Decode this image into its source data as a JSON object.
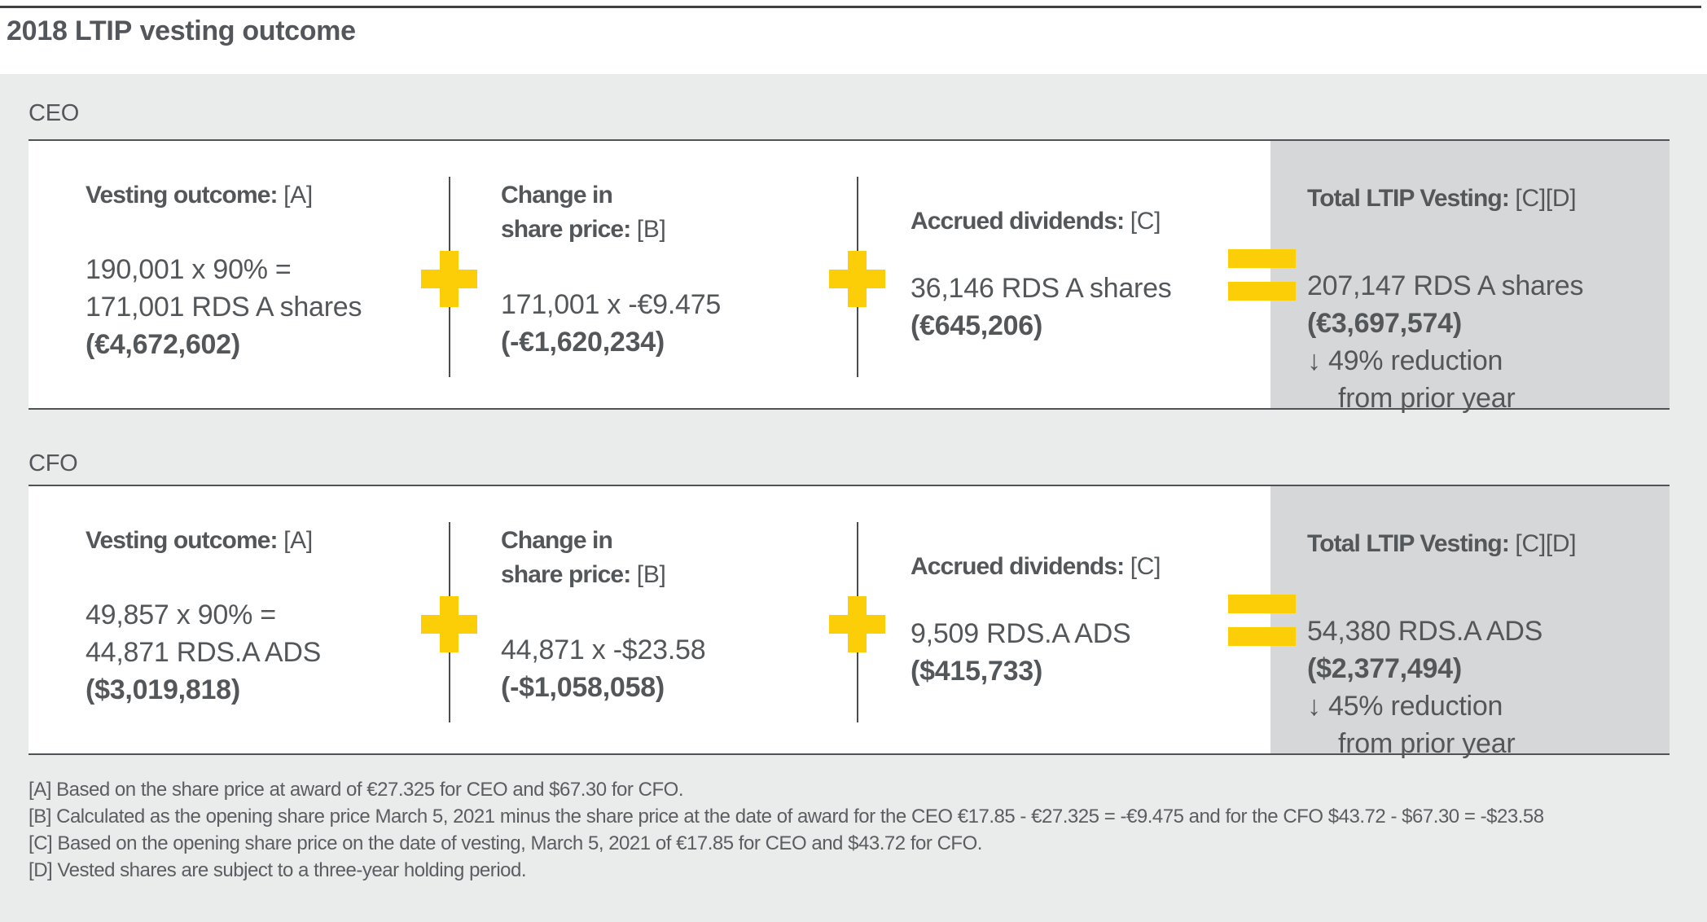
{
  "title": {
    "bold": "2018 LTIP",
    "rest": "vesting outcome"
  },
  "colors": {
    "accent_yellow": "#FBCE07",
    "band_gray": "#EAEBEB",
    "total_panel_gray": "#D5D7D8",
    "text_gray": "#54575A"
  },
  "sections": {
    "ceo": {
      "label": "CEO",
      "vesting": {
        "heading": "Vesting outcome:",
        "note": "[A]",
        "line1": "190,001 x 90% =",
        "line2": "171,001 RDS A shares",
        "amount": "(€4,672,602)"
      },
      "change": {
        "heading1": "Change in",
        "heading2": "share price:",
        "note": "[B]",
        "line1": "171,001 x -€9.475",
        "amount": "(-€1,620,234)"
      },
      "dividends": {
        "heading": "Accrued dividends:",
        "note": "[C]",
        "line1": "36,146 RDS A shares",
        "amount": "(€645,206)"
      },
      "total": {
        "heading": "Total LTIP Vesting:",
        "note": "[C][D]",
        "line1": "207,147 RDS A shares",
        "amount": "(€3,697,574)",
        "reduction_line1": "↓ 49% reduction",
        "reduction_line2": "from prior year"
      }
    },
    "cfo": {
      "label": "CFO",
      "vesting": {
        "heading": "Vesting outcome:",
        "note": "[A]",
        "line1": "49,857 x 90% =",
        "line2": "44,871 RDS.A ADS",
        "amount": "($3,019,818)"
      },
      "change": {
        "heading1": "Change in",
        "heading2": "share price:",
        "note": "[B]",
        "line1": "44,871 x -$23.58",
        "amount": "(-$1,058,058)"
      },
      "dividends": {
        "heading": "Accrued dividends:",
        "note": "[C]",
        "line1": "9,509 RDS.A ADS",
        "amount": "($415,733)"
      },
      "total": {
        "heading": "Total LTIP Vesting:",
        "note": "[C][D]",
        "line1": "54,380 RDS.A ADS",
        "amount": "($2,377,494)",
        "reduction_line1": "↓ 45% reduction",
        "reduction_line2": "from prior year"
      }
    }
  },
  "footnotes": {
    "a": "[A] Based on the share price at award of €27.325 for CEO and $67.30 for CFO.",
    "b": "[B] Calculated as the opening share price March 5, 2021 minus the share price at the date of award for the CEO €17.85 - €27.325 = -€9.475 and for the CFO $43.72 - $67.30 = -$23.58",
    "c": "[C] Based on the opening share price on the date of vesting, March 5, 2021 of €17.85 for CEO and $43.72 for CFO.",
    "d": "[D] Vested shares are subject to a three-year holding period."
  }
}
